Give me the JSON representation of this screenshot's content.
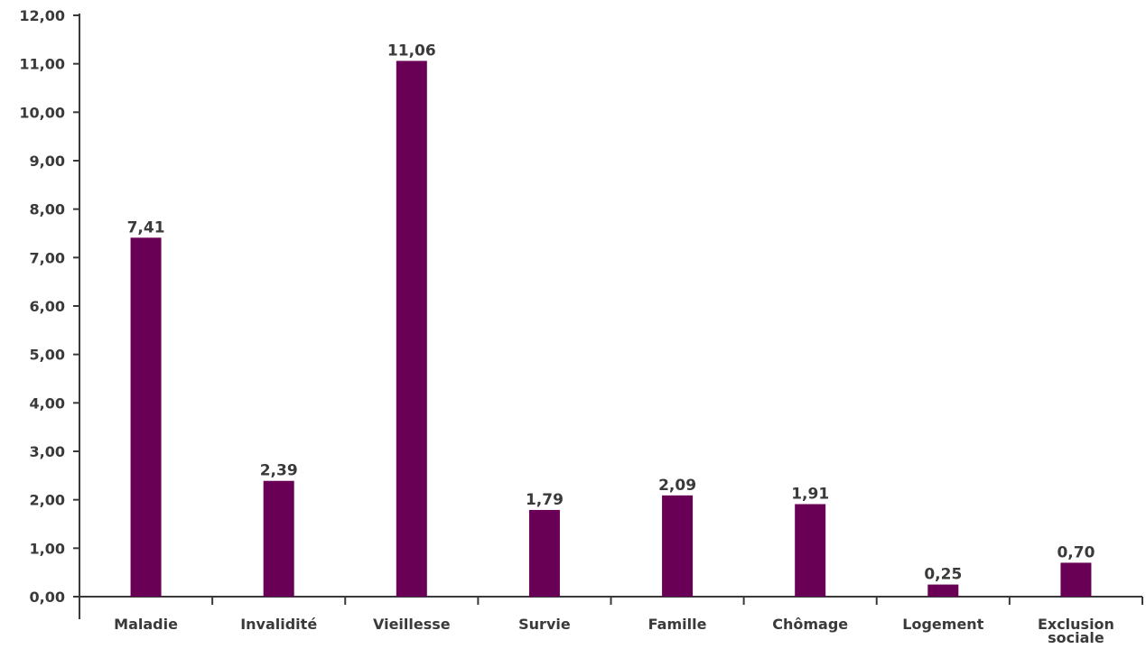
{
  "chart_data": {
    "type": "bar",
    "categories": [
      [
        "Maladie"
      ],
      [
        "Invalidité"
      ],
      [
        "Vieillesse"
      ],
      [
        "Survie"
      ],
      [
        "Famille"
      ],
      [
        "Chômage"
      ],
      [
        "Logement"
      ],
      [
        "Exclusion",
        "sociale"
      ]
    ],
    "values": [
      7.41,
      2.39,
      11.06,
      1.79,
      2.09,
      1.91,
      0.25,
      0.7
    ],
    "value_labels": [
      "7,41",
      "2,39",
      "11,06",
      "1,79",
      "2,09",
      "1,91",
      "0,25",
      "0,70"
    ],
    "y_ticks": [
      "0,00",
      "1,00",
      "2,00",
      "3,00",
      "4,00",
      "5,00",
      "6,00",
      "7,00",
      "8,00",
      "9,00",
      "10,00",
      "11,00",
      "12,00"
    ],
    "ylim": [
      0,
      12
    ],
    "grid": false,
    "bar_color": "#6a0055",
    "text_color": "#3a3a3a"
  }
}
